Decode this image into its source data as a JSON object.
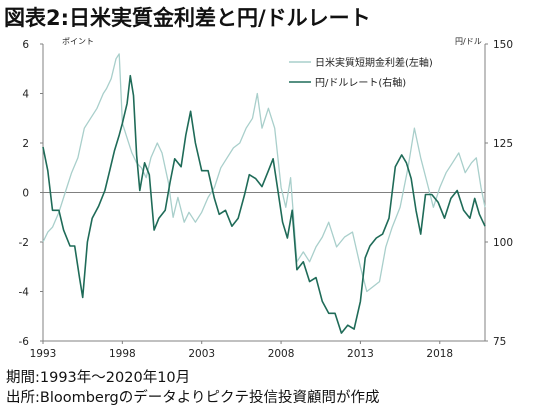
{
  "header": {
    "title": "図表2:日米実質金利差と円/ドルレート"
  },
  "footer": {
    "period": "期間:1993年〜2020年10月",
    "source": "出所:Bloombergのデータよりピクテ投信投資顧問が作成"
  },
  "colors": {
    "left_series": "#a9cfcb",
    "right_series": "#1f6b58",
    "axis": "#808080"
  },
  "chart_data": {
    "type": "line",
    "title": "図表2:日米実質金利差と円/ドルレート",
    "x_range": [
      1993.0,
      2020.85
    ],
    "x_ticks": [
      1993,
      1998,
      2003,
      2008,
      2013,
      2018
    ],
    "left_axis": {
      "unit": "ポイント",
      "range": [
        -6,
        6
      ],
      "ticks": [
        -6,
        -4,
        -2,
        0,
        2,
        4,
        6
      ]
    },
    "right_axis": {
      "unit": "円/ドル",
      "range": [
        75,
        150
      ],
      "ticks": [
        75,
        100,
        125,
        150
      ]
    },
    "grid": false,
    "legend": {
      "position": "top-right",
      "entries": [
        "日米実質短期金利差(左軸)",
        "円/ドルレート(右軸)"
      ]
    },
    "series": [
      {
        "name": "日米実質短期金利差(左軸)",
        "axis": "left",
        "x": [
          1993.0,
          1993.3,
          1993.6,
          1994.0,
          1994.4,
          1994.8,
          1995.2,
          1995.6,
          1996.0,
          1996.4,
          1996.8,
          1997.0,
          1997.3,
          1997.6,
          1997.8,
          1998.0,
          1998.3,
          1998.6,
          1998.9,
          1999.2,
          1999.5,
          1999.8,
          2000.2,
          2000.5,
          2000.9,
          2001.2,
          2001.5,
          2001.9,
          2002.2,
          2002.6,
          2003.0,
          2003.4,
          2003.8,
          2004.2,
          2004.6,
          2005.0,
          2005.4,
          2005.8,
          2006.2,
          2006.5,
          2006.8,
          2007.2,
          2007.6,
          2008.0,
          2008.3,
          2008.6,
          2009.0,
          2009.4,
          2009.8,
          2010.2,
          2010.6,
          2011.0,
          2011.5,
          2012.0,
          2012.5,
          2013.0,
          2013.4,
          2013.8,
          2014.2,
          2014.6,
          2015.0,
          2015.5,
          2016.0,
          2016.4,
          2016.8,
          2017.2,
          2017.6,
          2018.0,
          2018.4,
          2018.8,
          2019.2,
          2019.6,
          2020.0,
          2020.3,
          2020.6,
          2020.85
        ],
        "values": [
          -2.0,
          -1.6,
          -1.4,
          -0.8,
          0.0,
          0.8,
          1.4,
          2.6,
          3.0,
          3.4,
          4.0,
          4.2,
          4.6,
          5.4,
          5.6,
          2.8,
          2.2,
          1.6,
          1.2,
          1.0,
          0.6,
          1.4,
          2.0,
          1.6,
          0.4,
          -1.0,
          -0.2,
          -1.2,
          -0.8,
          -1.2,
          -0.8,
          -0.2,
          0.2,
          1.0,
          1.4,
          1.8,
          2.0,
          2.6,
          3.0,
          4.0,
          2.6,
          3.4,
          2.6,
          0.2,
          -0.6,
          0.6,
          -2.8,
          -2.4,
          -2.8,
          -2.2,
          -1.8,
          -1.2,
          -2.2,
          -1.8,
          -1.6,
          -3.0,
          -4.0,
          -3.8,
          -3.6,
          -2.2,
          -1.4,
          -0.6,
          1.0,
          2.6,
          1.4,
          0.4,
          -0.6,
          0.2,
          0.8,
          1.2,
          1.6,
          0.8,
          1.2,
          1.4,
          0.2,
          -0.6
        ]
      },
      {
        "name": "円/ドルレート(右軸)",
        "axis": "right",
        "x": [
          1993.0,
          1993.3,
          1993.6,
          1994.0,
          1994.3,
          1994.7,
          1995.0,
          1995.3,
          1995.5,
          1995.8,
          1996.1,
          1996.5,
          1996.9,
          1997.2,
          1997.5,
          1997.8,
          1998.0,
          1998.3,
          1998.5,
          1998.7,
          1998.9,
          1999.1,
          1999.4,
          1999.7,
          2000.0,
          2000.3,
          2000.7,
          2001.0,
          2001.3,
          2001.7,
          2002.0,
          2002.3,
          2002.6,
          2003.0,
          2003.4,
          2003.8,
          2004.1,
          2004.5,
          2004.9,
          2005.3,
          2005.7,
          2006.0,
          2006.4,
          2006.8,
          2007.2,
          2007.5,
          2007.8,
          2008.1,
          2008.4,
          2008.7,
          2009.0,
          2009.4,
          2009.8,
          2010.2,
          2010.6,
          2011.0,
          2011.4,
          2011.8,
          2012.2,
          2012.6,
          2013.0,
          2013.3,
          2013.6,
          2014.0,
          2014.4,
          2014.8,
          2015.2,
          2015.6,
          2015.9,
          2016.2,
          2016.5,
          2016.8,
          2017.1,
          2017.5,
          2017.9,
          2018.3,
          2018.7,
          2019.1,
          2019.5,
          2019.9,
          2020.2,
          2020.5,
          2020.85
        ],
        "values": [
          124,
          118,
          108,
          108,
          103,
          99,
          99,
          91,
          86,
          100,
          106,
          109,
          113,
          118,
          123,
          127,
          130,
          135,
          142,
          137,
          122,
          113,
          120,
          117,
          103,
          106,
          108,
          115,
          121,
          119,
          127,
          133,
          125,
          118,
          118,
          111,
          107,
          108,
          104,
          106,
          112,
          117,
          116,
          114,
          118,
          121,
          113,
          105,
          101,
          108,
          93,
          95,
          90,
          91,
          85,
          82,
          82,
          77,
          79,
          78,
          85,
          96,
          99,
          101,
          102,
          106,
          119,
          122,
          120,
          116,
          108,
          102,
          112,
          112,
          110,
          106,
          111,
          113,
          108,
          106,
          111,
          107,
          104
        ]
      }
    ]
  }
}
